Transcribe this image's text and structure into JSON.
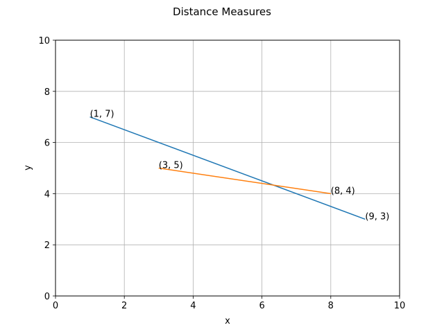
{
  "chart_data": {
    "type": "line",
    "title": "Distance Measures",
    "xlabel": "x",
    "ylabel": "y",
    "xlim": [
      0,
      10
    ],
    "ylim": [
      0,
      10
    ],
    "xticks": [
      0,
      2,
      4,
      6,
      8,
      10
    ],
    "yticks": [
      0,
      2,
      4,
      6,
      8,
      10
    ],
    "grid": true,
    "series": [
      {
        "color": "#1f77b4",
        "points": [
          {
            "x": 1,
            "y": 7,
            "label": "(1, 7)"
          },
          {
            "x": 9,
            "y": 3,
            "label": "(9, 3)"
          }
        ]
      },
      {
        "color": "#ff7f0e",
        "points": [
          {
            "x": 3,
            "y": 5,
            "label": "(3, 5)"
          },
          {
            "x": 8,
            "y": 4,
            "label": "(8, 4)"
          }
        ]
      }
    ]
  }
}
